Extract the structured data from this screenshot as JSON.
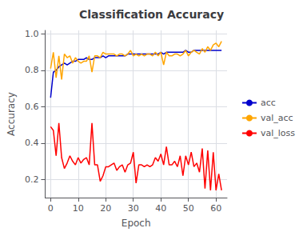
{
  "chart_data": {
    "type": "line",
    "title": "Classification Accuracy",
    "xlabel": "Epoch",
    "ylabel": "Accuracy",
    "x": [
      0,
      1,
      2,
      3,
      4,
      5,
      6,
      7,
      8,
      9,
      10,
      11,
      12,
      13,
      14,
      15,
      16,
      17,
      18,
      19,
      20,
      21,
      22,
      23,
      24,
      25,
      26,
      27,
      28,
      29,
      30,
      31,
      32,
      33,
      34,
      35,
      36,
      37,
      38,
      39,
      40,
      41,
      42,
      43,
      44,
      45,
      46,
      47,
      48,
      49,
      50,
      51,
      52,
      53,
      54,
      55,
      56,
      57,
      58,
      59,
      60,
      61,
      62
    ],
    "series": [
      {
        "name": "acc",
        "color": "#0000cc",
        "values": [
          0.65,
          0.79,
          0.8,
          0.82,
          0.83,
          0.84,
          0.83,
          0.84,
          0.85,
          0.85,
          0.86,
          0.86,
          0.86,
          0.87,
          0.86,
          0.86,
          0.87,
          0.87,
          0.87,
          0.88,
          0.87,
          0.88,
          0.88,
          0.88,
          0.88,
          0.88,
          0.88,
          0.88,
          0.89,
          0.89,
          0.89,
          0.89,
          0.89,
          0.89,
          0.89,
          0.89,
          0.89,
          0.89,
          0.89,
          0.89,
          0.9,
          0.89,
          0.9,
          0.9,
          0.9,
          0.9,
          0.9,
          0.9,
          0.9,
          0.91,
          0.9,
          0.9,
          0.91,
          0.91,
          0.91,
          0.91,
          0.91,
          0.91,
          0.91,
          0.91,
          0.91,
          0.91,
          0.91
        ]
      },
      {
        "name": "val_acc",
        "color": "#ffa500",
        "values": [
          0.81,
          0.9,
          0.76,
          0.88,
          0.75,
          0.89,
          0.87,
          0.88,
          0.84,
          0.87,
          0.85,
          0.84,
          0.85,
          0.85,
          0.88,
          0.79,
          0.88,
          0.88,
          0.87,
          0.9,
          0.89,
          0.89,
          0.89,
          0.89,
          0.88,
          0.89,
          0.89,
          0.88,
          0.89,
          0.91,
          0.88,
          0.89,
          0.88,
          0.89,
          0.88,
          0.89,
          0.89,
          0.88,
          0.9,
          0.88,
          0.9,
          0.83,
          0.9,
          0.88,
          0.88,
          0.89,
          0.89,
          0.88,
          0.89,
          0.91,
          0.88,
          0.9,
          0.91,
          0.9,
          0.89,
          0.92,
          0.9,
          0.93,
          0.91,
          0.94,
          0.95,
          0.93,
          0.96
        ]
      },
      {
        "name": "val_loss",
        "color": "#ff0000",
        "values": [
          0.49,
          0.47,
          0.33,
          0.51,
          0.32,
          0.26,
          0.29,
          0.33,
          0.3,
          0.28,
          0.32,
          0.29,
          0.31,
          0.32,
          0.28,
          0.51,
          0.28,
          0.28,
          0.19,
          0.22,
          0.27,
          0.27,
          0.28,
          0.29,
          0.25,
          0.27,
          0.28,
          0.24,
          0.28,
          0.29,
          0.35,
          0.18,
          0.28,
          0.28,
          0.27,
          0.28,
          0.27,
          0.28,
          0.32,
          0.3,
          0.34,
          0.28,
          0.38,
          0.28,
          0.28,
          0.3,
          0.27,
          0.33,
          0.22,
          0.33,
          0.28,
          0.35,
          0.27,
          0.29,
          0.24,
          0.37,
          0.15,
          0.36,
          0.14,
          0.35,
          0.14,
          0.23,
          0.14
        ]
      }
    ],
    "xlim": [
      -2,
      64
    ],
    "xticks": [
      0,
      10,
      20,
      30,
      40,
      50,
      60
    ],
    "ylim": [
      0.1,
      1.02
    ],
    "yticks": [
      0.2,
      0.4,
      0.6,
      0.8,
      {
        "value": 1.0,
        "label": "1.0"
      }
    ],
    "grid": true,
    "legend": "right"
  }
}
